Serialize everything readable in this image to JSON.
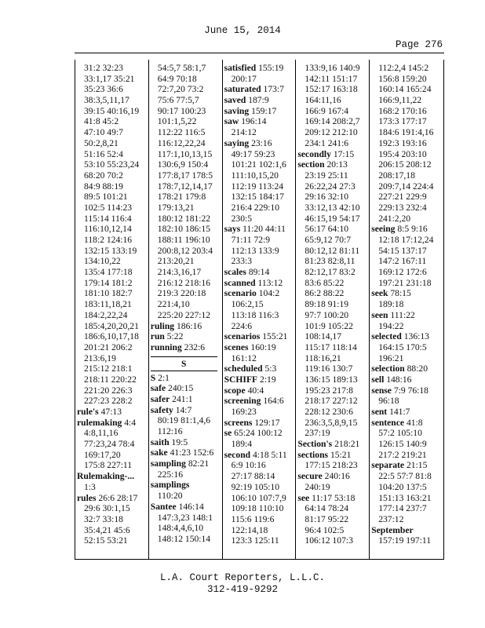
{
  "header": {
    "date": "June 15, 2014",
    "page": "Page 276"
  },
  "footer": {
    "company": "L.A. Court Reporters, L.L.C.",
    "phone": "312-419-9292"
  },
  "columns": [
    [
      [
        "",
        "31:2 32:23"
      ],
      [
        "",
        "33:1,17 35:21"
      ],
      [
        "",
        "35:23 36:6"
      ],
      [
        "",
        "38:3,5,11,17"
      ],
      [
        "",
        "39:15 40:16,19"
      ],
      [
        "",
        "41:8 45:2"
      ],
      [
        "",
        "47:10 49:7"
      ],
      [
        "",
        "50:2,8,21"
      ],
      [
        "",
        "51:16 52:4"
      ],
      [
        "",
        "53:10 55:23,24"
      ],
      [
        "",
        "68:20 70:2"
      ],
      [
        "",
        "84:9 88:19"
      ],
      [
        "",
        "89:5 101:21"
      ],
      [
        "",
        "102:5 114:23"
      ],
      [
        "",
        "115:14 116:4"
      ],
      [
        "",
        "116:10,12,14"
      ],
      [
        "",
        "118:2 124:16"
      ],
      [
        "",
        "132:15 133:19"
      ],
      [
        "",
        "134:10,22"
      ],
      [
        "",
        "135:4 177:18"
      ],
      [
        "",
        "179:14 181:2"
      ],
      [
        "",
        "181:10 182:7"
      ],
      [
        "",
        "183:11,18,21"
      ],
      [
        "",
        "184:2,22,24"
      ],
      [
        "",
        "185:4,20,20,21"
      ],
      [
        "",
        "186:6,10,17,18"
      ],
      [
        "",
        "201:21 206:2"
      ],
      [
        "",
        "213:6,19"
      ],
      [
        "",
        "215:12 218:1"
      ],
      [
        "",
        "218:11 220:22"
      ],
      [
        "",
        "221:20 226:3"
      ],
      [
        "",
        "227:23 228:2"
      ],
      [
        "rule's",
        "47:13"
      ],
      [
        "rulemaking",
        "4:4"
      ],
      [
        "",
        "4:8,11,16"
      ],
      [
        "",
        "77:23,24 78:4"
      ],
      [
        "",
        "169:17,20"
      ],
      [
        "",
        "175:8 227:11"
      ],
      [
        "Rulemaking-...",
        ""
      ],
      [
        "",
        "1:3"
      ],
      [
        "rules",
        "26:6 28:17"
      ],
      [
        "",
        "29:6 30:1,15"
      ],
      [
        "",
        "32:7 33:18"
      ],
      [
        "",
        "35:4,21 45:6"
      ],
      [
        "",
        "52:15 53:21"
      ]
    ],
    [
      [
        "",
        "54:5,7 58:1,7"
      ],
      [
        "",
        "64:9 70:18"
      ],
      [
        "",
        "72:7,20 73:2"
      ],
      [
        "",
        "75:6 77:5,7"
      ],
      [
        "",
        "90:17 100:23"
      ],
      [
        "",
        "101:1,5,22"
      ],
      [
        "",
        "112:22 116:5"
      ],
      [
        "",
        "116:12,22,24"
      ],
      [
        "",
        "117:1,10,13,15"
      ],
      [
        "",
        "130:6,9 150:4"
      ],
      [
        "",
        "177:8,17 178:5"
      ],
      [
        "",
        "178:7,12,14,17"
      ],
      [
        "",
        "178:21 179:8"
      ],
      [
        "",
        "179:13,21"
      ],
      [
        "",
        "180:12 181:22"
      ],
      [
        "",
        "182:10 186:15"
      ],
      [
        "",
        "188:11 196:10"
      ],
      [
        "",
        "200:8,12 203:4"
      ],
      [
        "",
        "213:20,21"
      ],
      [
        "",
        "214:3,16,17"
      ],
      [
        "",
        "216:12 218:16"
      ],
      [
        "",
        "219:3 220:18"
      ],
      [
        "",
        "221:4,10"
      ],
      [
        "",
        "225:20 227:12"
      ],
      [
        "ruling",
        "186:16"
      ],
      [
        "run",
        "5:22"
      ],
      [
        "running",
        "232:6"
      ],
      [
        "#SECTION",
        "S"
      ],
      [
        "S",
        "2:1"
      ],
      [
        "safe",
        "240:15"
      ],
      [
        "safer",
        "241:1"
      ],
      [
        "safety",
        "14:7"
      ],
      [
        "",
        "80:19 81:1,4,6"
      ],
      [
        "",
        "112:16"
      ],
      [
        "saith",
        "19:5"
      ],
      [
        "sake",
        "41:23 152:6"
      ],
      [
        "sampling",
        "82:21"
      ],
      [
        "",
        "225:16"
      ],
      [
        "samplings",
        ""
      ],
      [
        "",
        "110:20"
      ],
      [
        "Santee",
        "146:14"
      ],
      [
        "",
        "147:3,23 148:1"
      ],
      [
        "",
        "148:4,4,6,10"
      ],
      [
        "",
        "148:12 150:14"
      ]
    ],
    [
      [
        "satisfied",
        "155:19"
      ],
      [
        "",
        "200:17"
      ],
      [
        "saturated",
        "173:7"
      ],
      [
        "saved",
        "187:9"
      ],
      [
        "saving",
        "159:17"
      ],
      [
        "saw",
        "196:14"
      ],
      [
        "",
        "214:12"
      ],
      [
        "saying",
        "23:16"
      ],
      [
        "",
        "49:17 59:23"
      ],
      [
        "",
        "101:21 102:1,6"
      ],
      [
        "",
        "111:10,15,20"
      ],
      [
        "",
        "112:19 113:24"
      ],
      [
        "",
        "132:15 184:17"
      ],
      [
        "",
        "216:4 229:10"
      ],
      [
        "",
        "230:5"
      ],
      [
        "says",
        "11:20 44:11"
      ],
      [
        "",
        "71:11 72:9"
      ],
      [
        "",
        "112:13 133:9"
      ],
      [
        "",
        "233:3"
      ],
      [
        "scales",
        "89:14"
      ],
      [
        "scanned",
        "113:12"
      ],
      [
        "scenario",
        "104:2"
      ],
      [
        "",
        "106:2,15"
      ],
      [
        "",
        "113:18 116:3"
      ],
      [
        "",
        "224:6"
      ],
      [
        "scenarios",
        "155:21"
      ],
      [
        "scenes",
        "160:19"
      ],
      [
        "",
        "161:12"
      ],
      [
        "scheduled",
        "5:3"
      ],
      [
        "SCHIFF",
        "2:19"
      ],
      [
        "scope",
        "40:4"
      ],
      [
        "screening",
        "164:6"
      ],
      [
        "",
        "169:23"
      ],
      [
        "screens",
        "129:17"
      ],
      [
        "se",
        "65:24 100:12"
      ],
      [
        "",
        "189:4"
      ],
      [
        "second",
        "4:18 5:11"
      ],
      [
        "",
        "6:9 10:16"
      ],
      [
        "",
        "27:17 88:14"
      ],
      [
        "",
        "92:19 105:10"
      ],
      [
        "",
        "106:10 107:7,9"
      ],
      [
        "",
        "109:18 110:10"
      ],
      [
        "",
        "115:6 119:6"
      ],
      [
        "",
        "122:14,18"
      ],
      [
        "",
        "123:3 125:11"
      ]
    ],
    [
      [
        "",
        "133:9,16 140:9"
      ],
      [
        "",
        "142:11 151:17"
      ],
      [
        "",
        "152:17 163:18"
      ],
      [
        "",
        "164:11,16"
      ],
      [
        "",
        "166:9 167:4"
      ],
      [
        "",
        "169:14 208:2,7"
      ],
      [
        "",
        "209:12 212:10"
      ],
      [
        "",
        "234:1 241:6"
      ],
      [
        "secondly",
        "17:15"
      ],
      [
        "section",
        "20:13"
      ],
      [
        "",
        "23:19 25:11"
      ],
      [
        "",
        "26:22,24 27:3"
      ],
      [
        "",
        "29:16 32:10"
      ],
      [
        "",
        "33:12,13 42:10"
      ],
      [
        "",
        "46:15,19 54:17"
      ],
      [
        "",
        "56:17 64:10"
      ],
      [
        "",
        "65:9,12 70:7"
      ],
      [
        "",
        "80:12,12 81:11"
      ],
      [
        "",
        "81:23 82:8,11"
      ],
      [
        "",
        "82:12,17 83:2"
      ],
      [
        "",
        "83:6 85:22"
      ],
      [
        "",
        "86:2 88:22"
      ],
      [
        "",
        "89:18 91:19"
      ],
      [
        "",
        "97:7 100:20"
      ],
      [
        "",
        "101:9 105:22"
      ],
      [
        "",
        "108:14,17"
      ],
      [
        "",
        "115:17 118:14"
      ],
      [
        "",
        "118:16,21"
      ],
      [
        "",
        "119:16 130:7"
      ],
      [
        "",
        "136:15 189:13"
      ],
      [
        "",
        "195:23 217:8"
      ],
      [
        "",
        "218:17 227:12"
      ],
      [
        "",
        "228:12 230:6"
      ],
      [
        "",
        "236:3,5,8,9,15"
      ],
      [
        "",
        "237:19"
      ],
      [
        "Section's",
        "218:21"
      ],
      [
        "sections",
        "15:21"
      ],
      [
        "",
        "177:15 218:23"
      ],
      [
        "secure",
        "240:16"
      ],
      [
        "",
        "240:19"
      ],
      [
        "see",
        "11:17 53:18"
      ],
      [
        "",
        "64:14 78:24"
      ],
      [
        "",
        "81:17 95:22"
      ],
      [
        "",
        "96:4 102:5"
      ],
      [
        "",
        "106:12 107:3"
      ]
    ],
    [
      [
        "",
        "112:2,4 145:2"
      ],
      [
        "",
        "156:8 159:20"
      ],
      [
        "",
        "160:14 165:24"
      ],
      [
        "",
        "166:9,11,22"
      ],
      [
        "",
        "168:2 170:16"
      ],
      [
        "",
        "173:3 177:17"
      ],
      [
        "",
        "184:6 191:4,16"
      ],
      [
        "",
        "192:3 193:16"
      ],
      [
        "",
        "195:4 203:10"
      ],
      [
        "",
        "206:15 208:12"
      ],
      [
        "",
        "208:17,18"
      ],
      [
        "",
        "209:7,14 224:4"
      ],
      [
        "",
        "227:21 229:9"
      ],
      [
        "",
        "229:13 232:4"
      ],
      [
        "",
        "241:2,20"
      ],
      [
        "seeing",
        "8:5 9:16"
      ],
      [
        "",
        "12:18 17:12,24"
      ],
      [
        "",
        "54:15 137:17"
      ],
      [
        "",
        "147:2 167:11"
      ],
      [
        "",
        "169:12 172:6"
      ],
      [
        "",
        "197:21 231:18"
      ],
      [
        "seek",
        "78:15"
      ],
      [
        "",
        "189:18"
      ],
      [
        "seen",
        "111:22"
      ],
      [
        "",
        "194:22"
      ],
      [
        "selected",
        "136:13"
      ],
      [
        "",
        "164:15 170:5"
      ],
      [
        "",
        "196:21"
      ],
      [
        "selection",
        "88:20"
      ],
      [
        "sell",
        "148:16"
      ],
      [
        "sense",
        "7:9 76:18"
      ],
      [
        "",
        "96:18"
      ],
      [
        "sent",
        "141:7"
      ],
      [
        "sentence",
        "41:8"
      ],
      [
        "",
        "57:2 105:10"
      ],
      [
        "",
        "126:15 140:9"
      ],
      [
        "",
        "217:2 219:21"
      ],
      [
        "separate",
        "21:15"
      ],
      [
        "",
        "22:5 57:7 81:8"
      ],
      [
        "",
        "104:20 137:5"
      ],
      [
        "",
        "151:13 163:21"
      ],
      [
        "",
        "177:14 237:7"
      ],
      [
        "",
        "237:12"
      ],
      [
        "September",
        ""
      ],
      [
        "",
        "157:19 197:11"
      ]
    ]
  ]
}
